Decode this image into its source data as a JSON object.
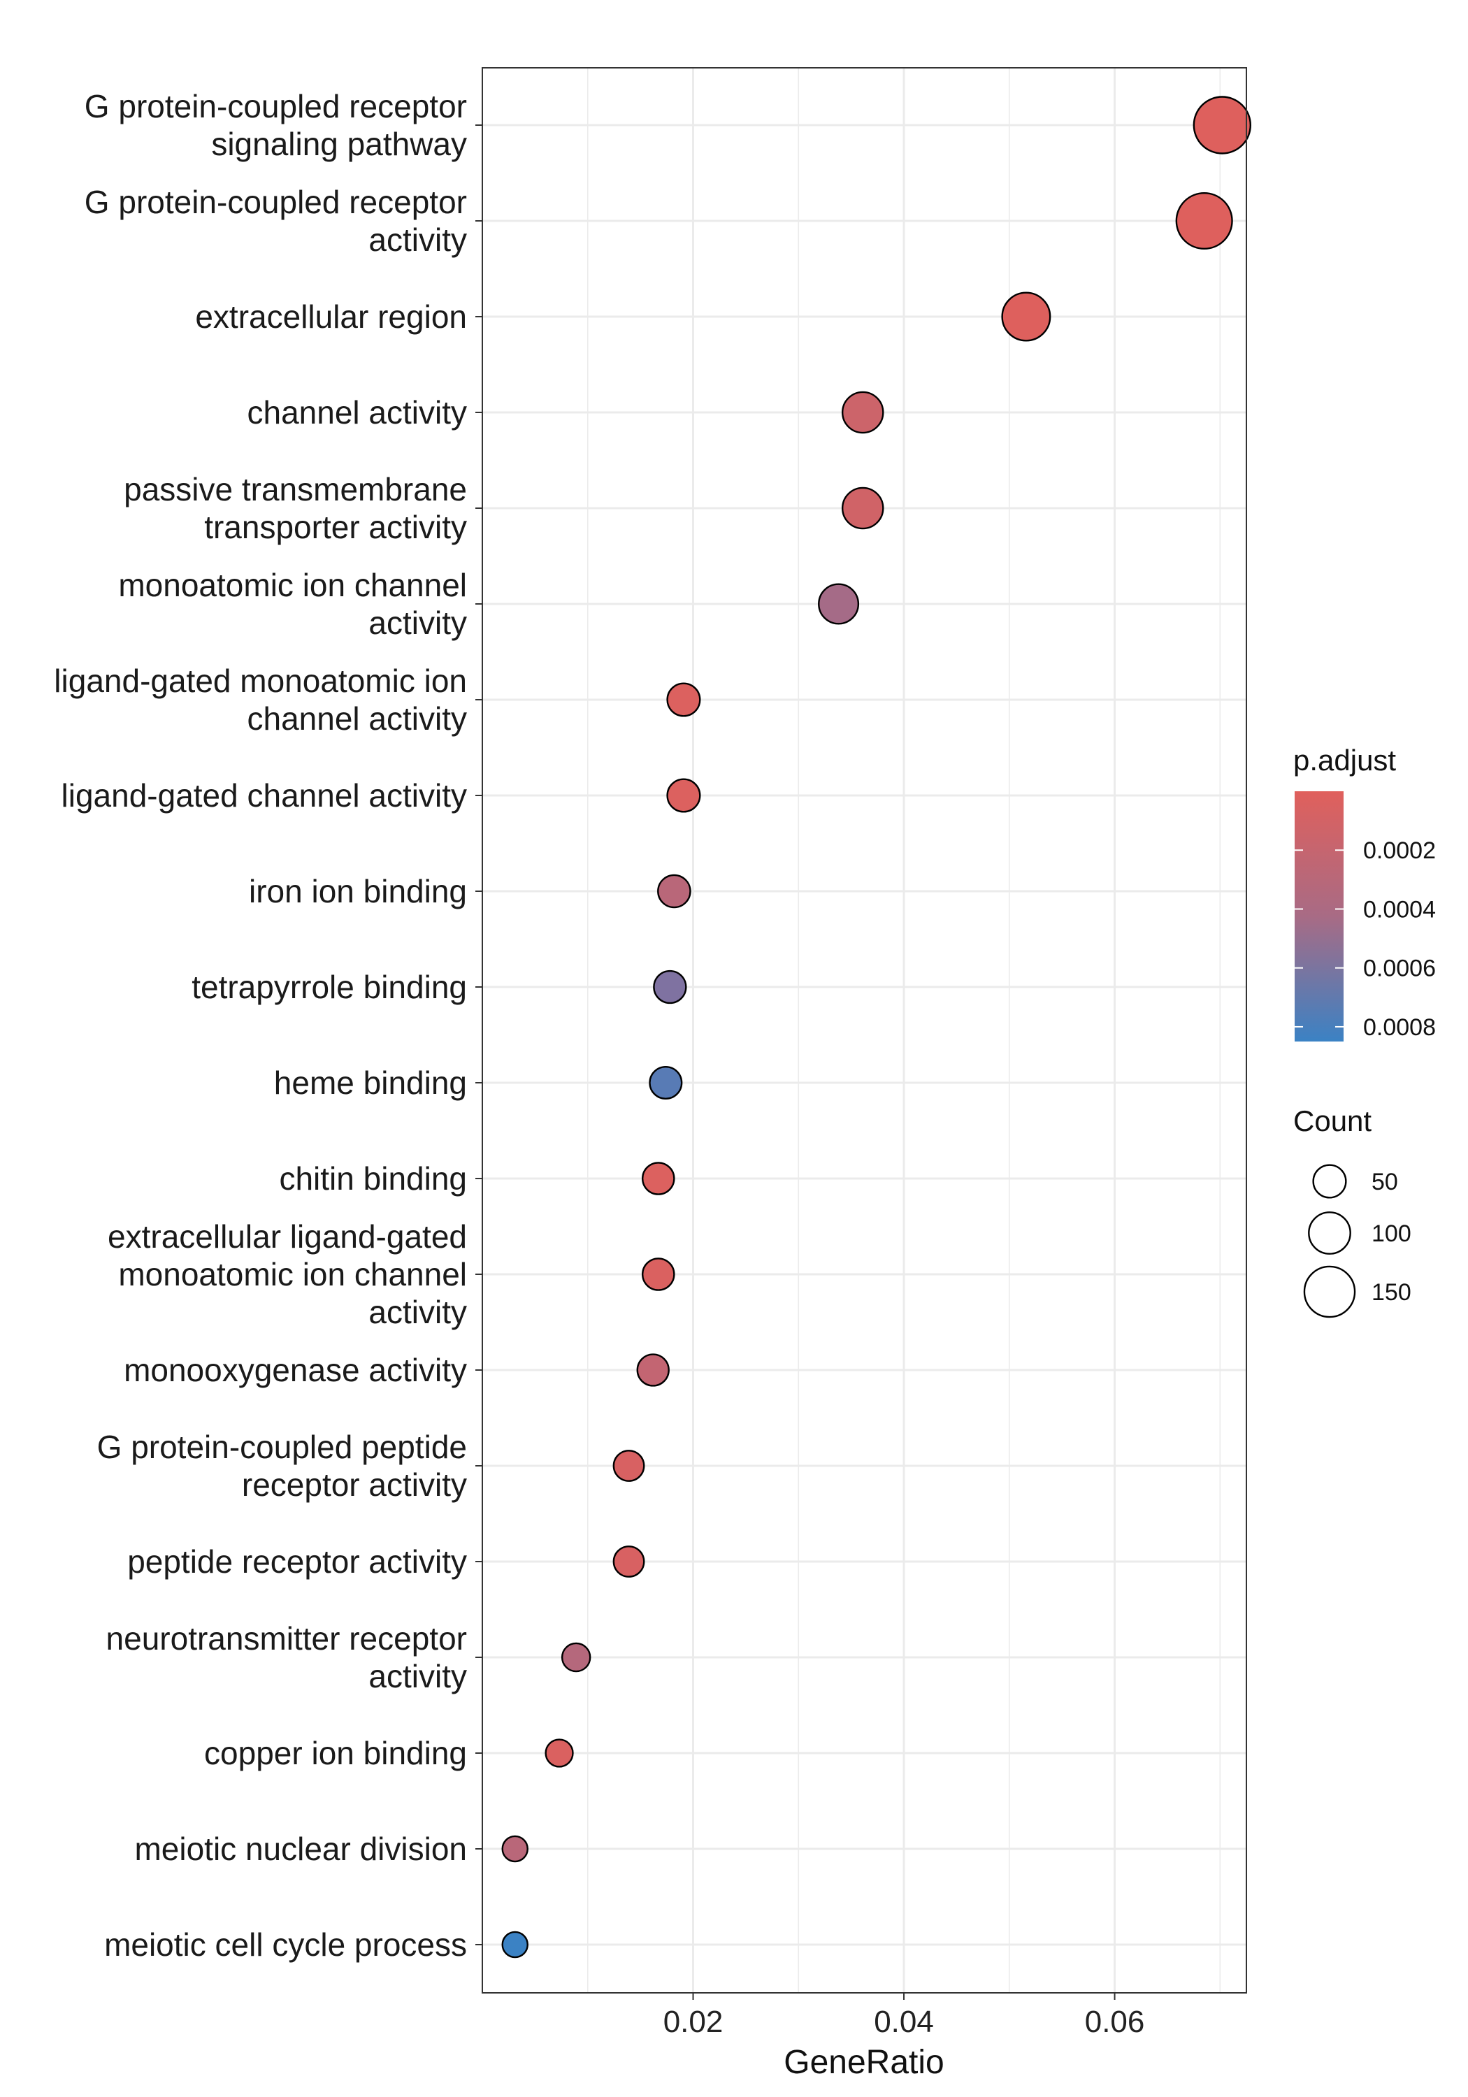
{
  "chart_data": {
    "type": "scatter",
    "title": "",
    "xlabel": "GeneRatio",
    "ylabel": "",
    "xlim": [
      0.0,
      0.0725
    ],
    "xticks": [
      0.02,
      0.04,
      0.06
    ],
    "xtick_labels": [
      "0.02",
      "0.04",
      "0.06"
    ],
    "grid": true,
    "legend_placement": "right",
    "categories": [
      "G protein-coupled receptor\nsignaling pathway",
      "G protein-coupled receptor\nactivity",
      "extracellular region",
      "channel activity",
      "passive transmembrane\ntransporter activity",
      "monoatomic ion channel\nactivity",
      "ligand-gated monoatomic ion\nchannel activity",
      "ligand-gated channel activity",
      "iron ion binding",
      "tetrapyrrole binding",
      "heme binding",
      "chitin binding",
      "extracellular ligand-gated\nmonoatomic ion channel\nactivity",
      "monooxygenase activity",
      "G protein-coupled peptide\nreceptor activity",
      "peptide receptor activity",
      "neurotransmitter receptor\nactivity",
      "copper ion binding",
      "meiotic nuclear division",
      "meiotic cell cycle process"
    ],
    "gene_ratio": [
      0.0702,
      0.0685,
      0.0516,
      0.0361,
      0.0361,
      0.0338,
      0.0191,
      0.0191,
      0.0182,
      0.0178,
      0.0174,
      0.0167,
      0.0167,
      0.0162,
      0.0139,
      0.0139,
      0.0089,
      0.0073,
      0.0031,
      0.0031
    ],
    "count": [
      185,
      180,
      136,
      95,
      95,
      89,
      50,
      50,
      48,
      47,
      46,
      44,
      44,
      43,
      37,
      37,
      24,
      19,
      8,
      8
    ],
    "p_adjust": [
      1e-05,
      1e-05,
      1e-05,
      0.0001,
      8e-05,
      0.0003,
      2e-05,
      2e-05,
      0.0002,
      0.0005,
      0.0007,
      2e-05,
      3e-05,
      0.00015,
      4e-05,
      4e-05,
      0.00022,
      3e-05,
      0.0002,
      0.00085
    ],
    "color_legend": {
      "title": "p.adjust",
      "range": [
        0.0,
        0.00085
      ],
      "ticks": [
        0.0002,
        0.0004,
        0.0006,
        0.0008
      ],
      "tick_labels": [
        "0.0002",
        "0.0004",
        "0.0006",
        "0.0008"
      ],
      "low_color": "#e0605c",
      "mid_color": "#8d6f99",
      "high_color": "#3b82c4"
    },
    "size_legend": {
      "title": "Count",
      "values": [
        50,
        100,
        150
      ],
      "labels": [
        "50",
        "100",
        "150"
      ]
    },
    "point_outline_color": "#000000"
  }
}
